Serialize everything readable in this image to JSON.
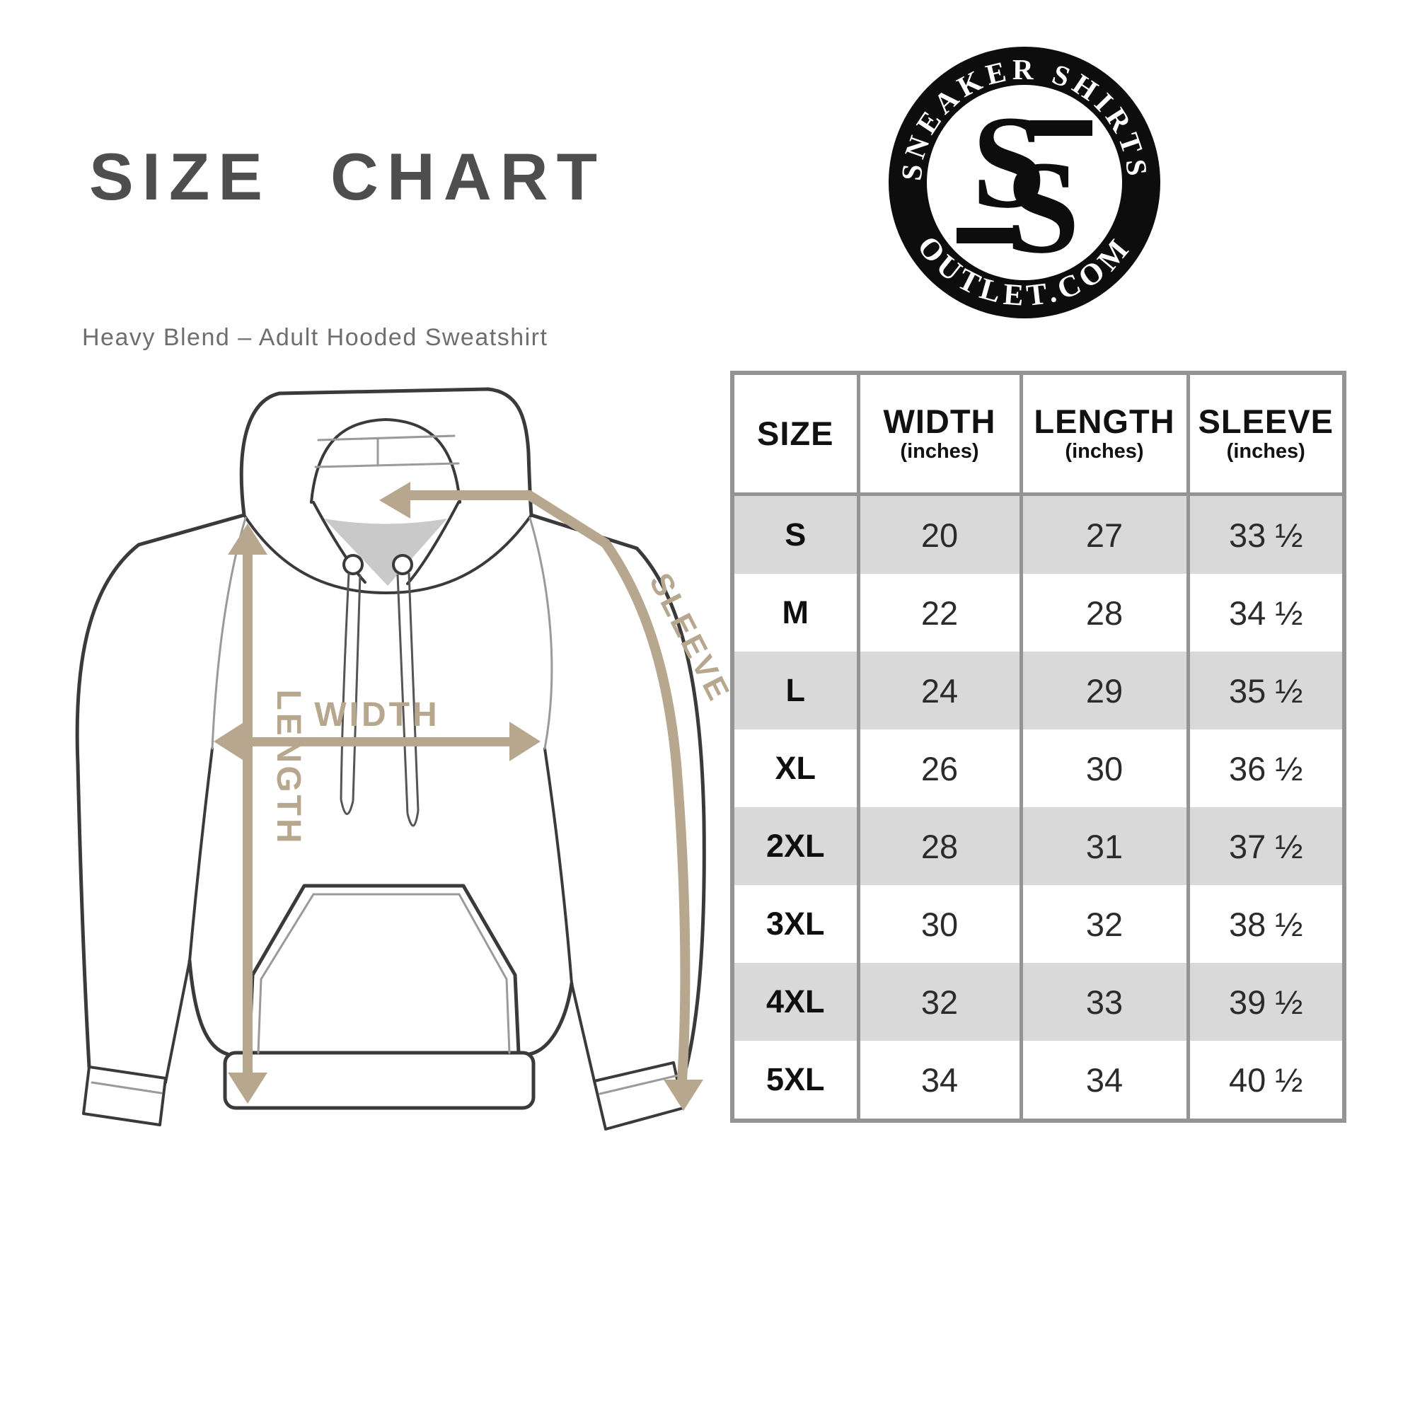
{
  "header": {
    "title": "SIZE CHART",
    "subtitle": "Heavy Blend – Adult Hooded Sweatshirt"
  },
  "logo": {
    "top_text": "SNEAKER SHIRTS",
    "bottom_text": "OUTLET.COM",
    "monogram_letter_1": "S",
    "monogram_letter_2": "S",
    "ring_color": "#0d0d0d",
    "text_color": "#ffffff"
  },
  "diagram": {
    "width_label": "WIDTH",
    "length_label": "LENGTH",
    "sleeve_label": "SLEEVE",
    "arrow_color": "#b7a78e",
    "outline_color": "#3a3a3a",
    "neck_fill": "#c9c9c9"
  },
  "table": {
    "columns": [
      {
        "label": "SIZE",
        "unit": ""
      },
      {
        "label": "WIDTH",
        "unit": "(inches)"
      },
      {
        "label": "LENGTH",
        "unit": "(inches)"
      },
      {
        "label": "SLEEVE",
        "unit": "(inches)"
      }
    ],
    "rows": [
      {
        "size": "S",
        "width": "20",
        "length": "27",
        "sleeve": "33 ½"
      },
      {
        "size": "M",
        "width": "22",
        "length": "28",
        "sleeve": "34 ½"
      },
      {
        "size": "L",
        "width": "24",
        "length": "29",
        "sleeve": "35 ½"
      },
      {
        "size": "XL",
        "width": "26",
        "length": "30",
        "sleeve": "36 ½"
      },
      {
        "size": "2XL",
        "width": "28",
        "length": "31",
        "sleeve": "37 ½"
      },
      {
        "size": "3XL",
        "width": "30",
        "length": "32",
        "sleeve": "38 ½"
      },
      {
        "size": "4XL",
        "width": "32",
        "length": "33",
        "sleeve": "39 ½"
      },
      {
        "size": "5XL",
        "width": "34",
        "length": "34",
        "sleeve": "40 ½"
      }
    ],
    "border_color": "#949494",
    "alt_row_color": "#d9d9d9"
  },
  "chart_data": {
    "type": "table",
    "title": "SIZE CHART",
    "subtitle": "Heavy Blend – Adult Hooded Sweatshirt",
    "columns": [
      "SIZE",
      "WIDTH (inches)",
      "LENGTH (inches)",
      "SLEEVE (inches)"
    ],
    "rows": [
      [
        "S",
        "20",
        "27",
        "33 ½"
      ],
      [
        "M",
        "22",
        "28",
        "34 ½"
      ],
      [
        "L",
        "24",
        "29",
        "35 ½"
      ],
      [
        "XL",
        "26",
        "30",
        "36 ½"
      ],
      [
        "2XL",
        "28",
        "31",
        "37 ½"
      ],
      [
        "3XL",
        "30",
        "32",
        "38 ½"
      ],
      [
        "4XL",
        "32",
        "33",
        "39 ½"
      ],
      [
        "5XL",
        "34",
        "34",
        "40 ½"
      ]
    ]
  }
}
